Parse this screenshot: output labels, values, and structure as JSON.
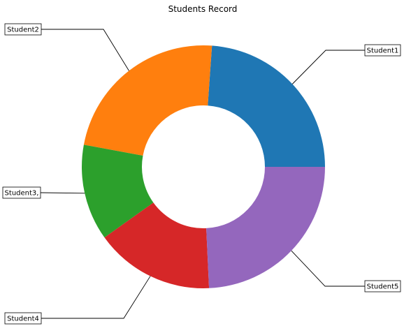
{
  "chart_data": {
    "type": "pie",
    "style": "donut",
    "title": "Students Record",
    "start_angle_deg": 0,
    "direction": "counterclockwise",
    "slices": [
      {
        "label": "Student1",
        "value": 25.0,
        "color": "#1f77b4"
      },
      {
        "label": "Student2",
        "value": 24.3,
        "color": "#ff7f0e"
      },
      {
        "label": "Student3,",
        "value": 13.4,
        "color": "#2ca02c"
      },
      {
        "label": "Student4",
        "value": 16.6,
        "color": "#d62728"
      },
      {
        "label": "Student5",
        "value": 25.4,
        "color": "#9467bd"
      }
    ]
  }
}
